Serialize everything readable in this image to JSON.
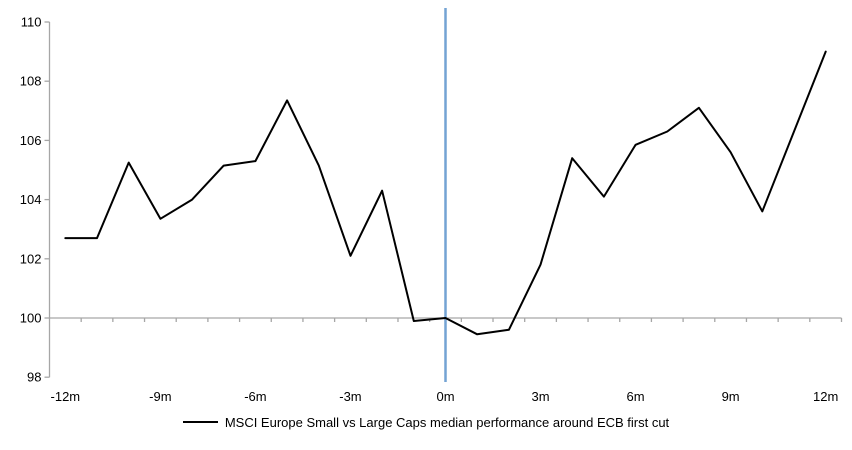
{
  "page": {
    "background": "#ffffff"
  },
  "colors": {
    "axis": "#a6a6a6",
    "series_line": "#000000",
    "event_line": "#74a3d4",
    "text": "#000000"
  },
  "chart_data": {
    "type": "line",
    "title": "",
    "categories": [
      "-12m",
      "-11m",
      "-10m",
      "-9m",
      "-8m",
      "-7m",
      "-6m",
      "-5m",
      "-4m",
      "-3m",
      "-2m",
      "-1m",
      "0m",
      "1m",
      "2m",
      "3m",
      "4m",
      "5m",
      "6m",
      "7m",
      "8m",
      "9m",
      "10m",
      "11m",
      "12m"
    ],
    "series": [
      {
        "name": "MSCI Europe Small vs Large Caps median performance around ECB first cut",
        "color": "#000000",
        "values": [
          102.7,
          102.7,
          105.25,
          103.35,
          104.0,
          105.15,
          105.3,
          107.35,
          105.15,
          102.1,
          104.3,
          99.9,
          100.0,
          99.45,
          99.6,
          101.8,
          105.4,
          104.1,
          105.85,
          106.3,
          107.1,
          105.6,
          103.6,
          106.3,
          109.0
        ]
      }
    ],
    "visible_xtick_labels": [
      "-12m",
      "-9m",
      "-6m",
      "-3m",
      "0m",
      "3m",
      "6m",
      "9m",
      "12m"
    ],
    "yticks": [
      98,
      100,
      102,
      104,
      106,
      108,
      110
    ],
    "ylim": [
      98,
      110
    ],
    "baseline_value": 100,
    "grid": "horizontal baseline at 100 only",
    "legend_position": "bottom-center",
    "annotations": [
      {
        "type": "vline",
        "at_category": "0m",
        "color": "#74a3d4"
      }
    ]
  }
}
